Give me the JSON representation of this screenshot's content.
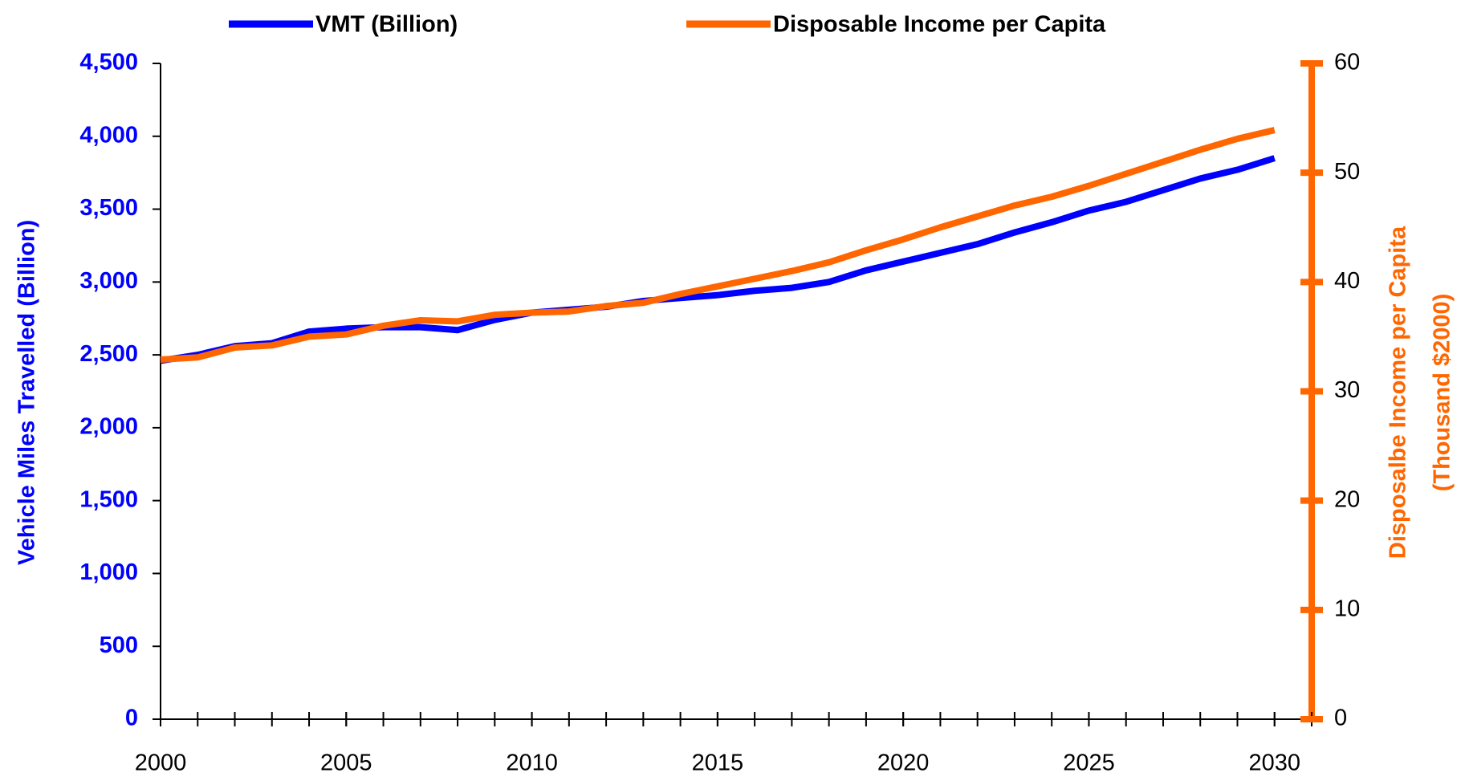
{
  "chart_data": {
    "type": "line",
    "x": [
      2000,
      2001,
      2002,
      2003,
      2004,
      2005,
      2006,
      2007,
      2008,
      2009,
      2010,
      2011,
      2012,
      2013,
      2014,
      2015,
      2016,
      2017,
      2018,
      2019,
      2020,
      2021,
      2022,
      2023,
      2024,
      2025,
      2026,
      2027,
      2028,
      2029,
      2030
    ],
    "series": [
      {
        "name": "VMT (Billion)",
        "color": "#0000ff",
        "values": [
          2460,
          2500,
          2560,
          2580,
          2660,
          2680,
          2690,
          2690,
          2670,
          2740,
          2790,
          2810,
          2830,
          2870,
          2890,
          2910,
          2940,
          2960,
          3000,
          3080,
          3140,
          3200,
          3260,
          3340,
          3410,
          3490,
          3550,
          3630,
          3710,
          3770,
          3850
        ]
      },
      {
        "name": "Disposable Income per Capita",
        "color": "#ff6600",
        "axis": "y2",
        "values": [
          32.9,
          33.1,
          34,
          34.2,
          35,
          35.2,
          36,
          36.5,
          36.4,
          37,
          37.2,
          37.3,
          37.8,
          38.1,
          38.9,
          39.6,
          40.3,
          41,
          41.8,
          42.9,
          43.9,
          45,
          46,
          47,
          47.8,
          48.8,
          49.9,
          51,
          52.1,
          53.1,
          53.9
        ]
      }
    ],
    "xlim": [
      2000,
      2031
    ],
    "xticks": [
      2000,
      2005,
      2010,
      2015,
      2020,
      2025,
      2030
    ],
    "ylim": [
      0,
      4500
    ],
    "yticks": [
      0,
      500,
      {
        "value": 1000,
        "label": "1,000"
      },
      {
        "value": 1500,
        "label": "1,500"
      },
      {
        "value": 2000,
        "label": "2,000"
      },
      {
        "value": 2500,
        "label": "2,500"
      },
      {
        "value": 3000,
        "label": "3,000"
      },
      {
        "value": 3500,
        "label": "3,500"
      },
      {
        "value": 4000,
        "label": "4,000"
      },
      {
        "value": 4500,
        "label": "4,500"
      }
    ],
    "y2lim": [
      0,
      60
    ],
    "y2ticks": [
      0,
      10,
      20,
      30,
      40,
      50,
      60
    ],
    "ylabel": "Vehicle Miles Travelled (Billion)",
    "y2label": [
      "Disposalbe Income per Capita",
      "(Thousand $2000)"
    ]
  }
}
